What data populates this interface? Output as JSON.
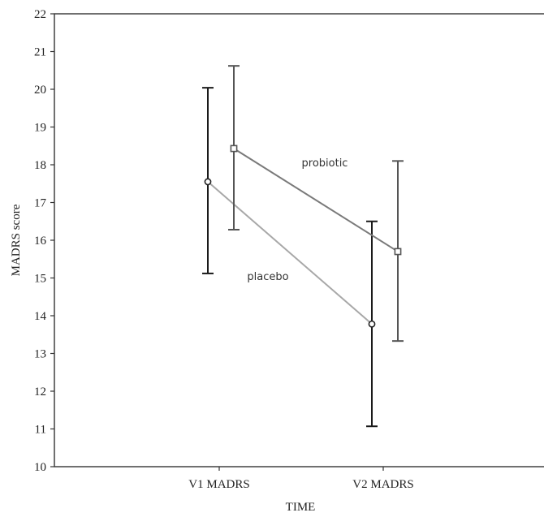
{
  "chart_data": {
    "type": "line",
    "title": "",
    "xlabel": "TIME",
    "ylabel": "MADRS score",
    "categories": [
      "V1 MADRS",
      "V2 MADRS"
    ],
    "ylim": [
      10,
      22
    ],
    "yticks": [
      10,
      11,
      12,
      13,
      14,
      15,
      16,
      17,
      18,
      19,
      20,
      21,
      22
    ],
    "grid": false,
    "series": [
      {
        "name": "placebo",
        "marker": "circle",
        "line_color": "#a8a8a8",
        "errorbar_color": "#1a1a1a",
        "values": [
          17.55,
          13.78
        ],
        "error_low": [
          15.12,
          11.07
        ],
        "error_high": [
          20.04,
          16.5
        ]
      },
      {
        "name": "probiotic",
        "marker": "square",
        "line_color": "#7a7a7a",
        "errorbar_color": "#555555",
        "values": [
          18.43,
          15.7
        ],
        "error_low": [
          16.28,
          13.33
        ],
        "error_high": [
          20.62,
          18.1
        ]
      }
    ]
  }
}
